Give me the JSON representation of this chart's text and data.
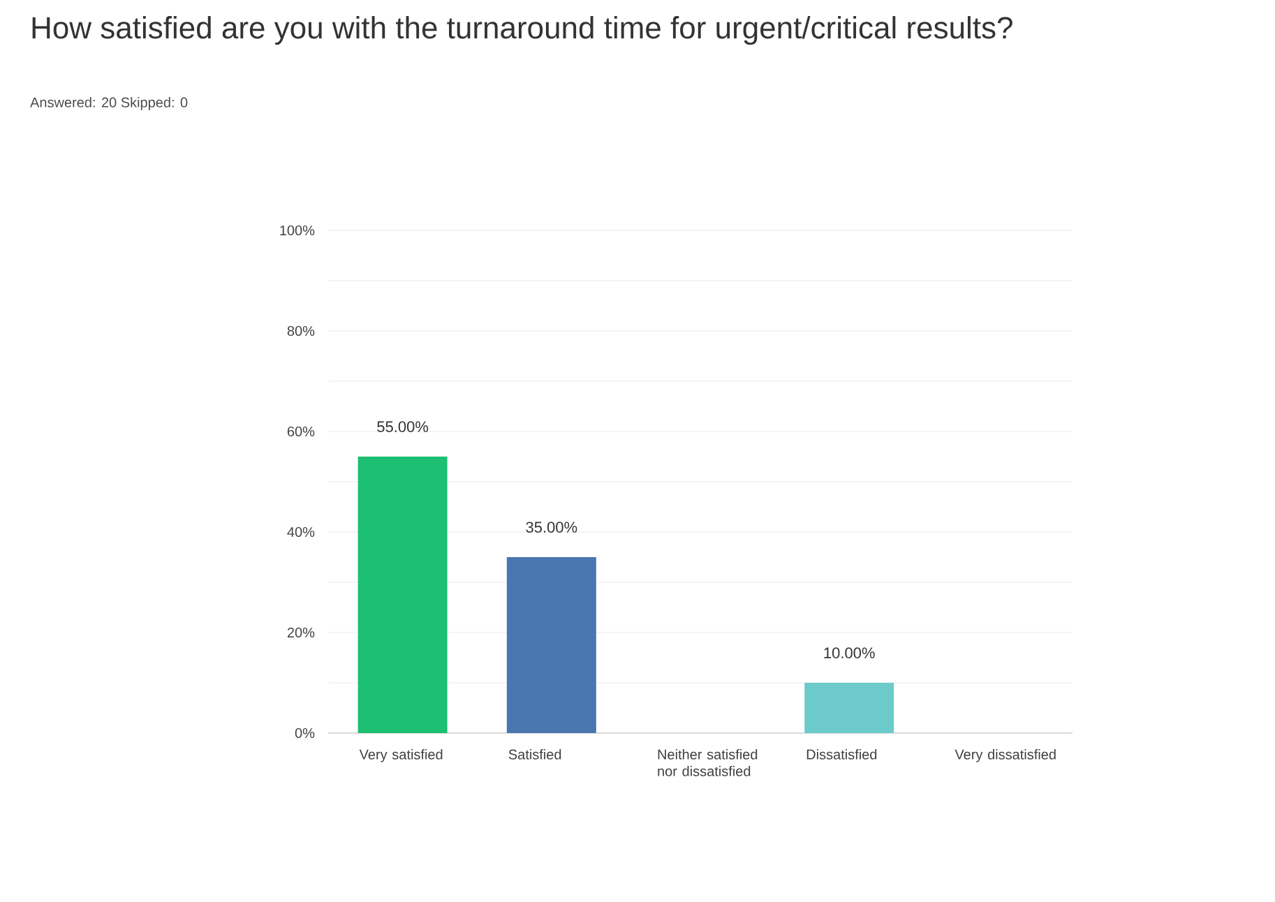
{
  "chart_data": {
    "type": "bar",
    "title": "How satisfied are you with the turnaround time for urgent/critical results?",
    "subtitle": "Answered: 20    Skipped: 0",
    "categories": [
      "Very satisfied",
      "Satisfied",
      "Neither satisfied nor dissatisfied",
      "Dissatisfied",
      "Very dissatisfied"
    ],
    "values": [
      55,
      35,
      0,
      10,
      0
    ],
    "value_labels": [
      "55.00%",
      "35.00%",
      null,
      "10.00%",
      null
    ],
    "colors": [
      "#1dbf73",
      "#4a76b0",
      "#f0a33c",
      "#6ccaca",
      "#b27ec4"
    ],
    "ylim": [
      0,
      100
    ],
    "yticks": [
      {
        "value": 0,
        "label": "0%"
      },
      {
        "value": 10,
        "label": null
      },
      {
        "value": 20,
        "label": "20%"
      },
      {
        "value": 30,
        "label": null
      },
      {
        "value": 40,
        "label": "40%"
      },
      {
        "value": 50,
        "label": null
      },
      {
        "value": 60,
        "label": "60%"
      },
      {
        "value": 70,
        "label": null
      },
      {
        "value": 80,
        "label": "80%"
      },
      {
        "value": 90,
        "label": null
      },
      {
        "value": 100,
        "label": "100%"
      }
    ],
    "grid": "y"
  }
}
